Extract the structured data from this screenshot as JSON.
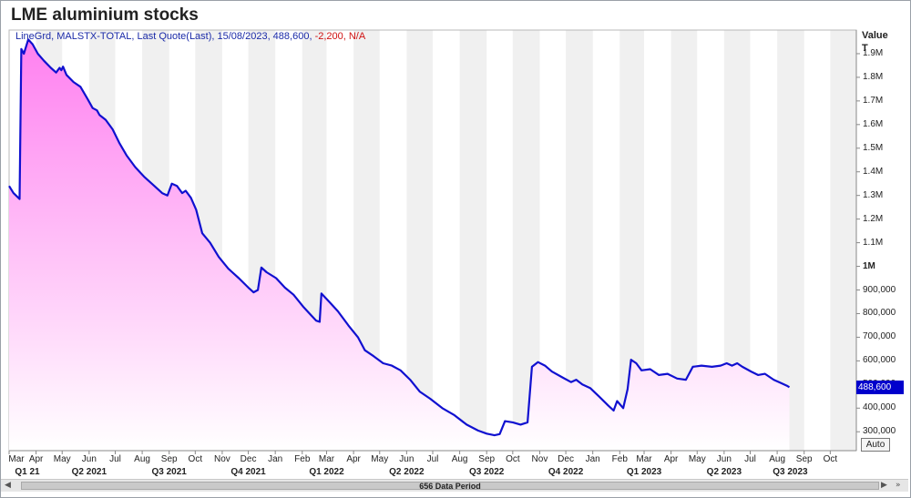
{
  "title": "LME aluminium stocks",
  "legend": {
    "prefix": "LineGrd, MALSTX-TOTAL, Last Quote(Last), 15/08/2023, 488,600,",
    "change": "-2,200, N/A"
  },
  "y_axis": {
    "title": "Value",
    "unit": "T",
    "ticks": [
      {
        "value": 300000,
        "label": "300,000",
        "bold": false
      },
      {
        "value": 400000,
        "label": "400,000",
        "bold": false
      },
      {
        "value": 500000,
        "label": "500,000",
        "bold": false
      },
      {
        "value": 600000,
        "label": "600,000",
        "bold": false
      },
      {
        "value": 700000,
        "label": "700,000",
        "bold": false
      },
      {
        "value": 800000,
        "label": "800,000",
        "bold": false
      },
      {
        "value": 900000,
        "label": "900,000",
        "bold": false
      },
      {
        "value": 1000000,
        "label": "1M",
        "bold": true
      },
      {
        "value": 1100000,
        "label": "1.1M",
        "bold": false
      },
      {
        "value": 1200000,
        "label": "1.2M",
        "bold": false
      },
      {
        "value": 1300000,
        "label": "1.3M",
        "bold": false
      },
      {
        "value": 1400000,
        "label": "1.4M",
        "bold": false
      },
      {
        "value": 1500000,
        "label": "1.5M",
        "bold": false
      },
      {
        "value": 1600000,
        "label": "1.6M",
        "bold": false
      },
      {
        "value": 1700000,
        "label": "1.7M",
        "bold": false
      },
      {
        "value": 1800000,
        "label": "1.8M",
        "bold": false
      },
      {
        "value": 1900000,
        "label": "1.9M",
        "bold": false
      }
    ],
    "last_value_label": "488,600",
    "auto_label": "Auto"
  },
  "x_axis": {
    "months": [
      "Mar",
      "Apr",
      "May",
      "Jun",
      "Jul",
      "Aug",
      "Sep",
      "Oct",
      "Nov",
      "Dec",
      "Jan",
      "Feb",
      "Mar",
      "Apr",
      "May",
      "Jun",
      "Jul",
      "Aug",
      "Sep",
      "Oct",
      "Nov",
      "Dec",
      "Jan",
      "Feb",
      "Mar",
      "Apr",
      "May",
      "Jun",
      "Jul",
      "Aug",
      "Sep",
      "Oct"
    ],
    "quarters": [
      "Q1 21",
      "Q2 2021",
      "Q3 2021",
      "Q4 2021",
      "Q1 2022",
      "Q2 2022",
      "Q3 2022",
      "Q4 2022",
      "Q1 2023",
      "Q2 2023",
      "Q3 2023"
    ]
  },
  "scrollbar_text": "656 Data Period",
  "colors": {
    "line": "#1010d0",
    "fill_top": "#ff80f0",
    "fill_bottom": "#ffffff",
    "band": "#f0f0f0",
    "badge": "#0000cc"
  },
  "chart_data": {
    "type": "area",
    "title": "LME aluminium stocks",
    "ylabel": "Value T",
    "series_label": "LineGrd, MALSTX-TOTAL, Last Quote(Last)",
    "ylim": [
      220000,
      2000000
    ],
    "x_range": [
      "2021-03-01",
      "2023-10-31"
    ],
    "points": [
      [
        "2021-03-01",
        1340000
      ],
      [
        "2021-03-06",
        1310000
      ],
      [
        "2021-03-13",
        1285000
      ],
      [
        "2021-03-15",
        1920000
      ],
      [
        "2021-03-18",
        1900000
      ],
      [
        "2021-03-23",
        1960000
      ],
      [
        "2021-03-28",
        1940000
      ],
      [
        "2021-04-03",
        1900000
      ],
      [
        "2021-04-10",
        1870000
      ],
      [
        "2021-04-18",
        1840000
      ],
      [
        "2021-04-24",
        1820000
      ],
      [
        "2021-04-28",
        1840000
      ],
      [
        "2021-04-30",
        1830000
      ],
      [
        "2021-05-02",
        1845000
      ],
      [
        "2021-05-06",
        1810000
      ],
      [
        "2021-05-14",
        1780000
      ],
      [
        "2021-05-22",
        1760000
      ],
      [
        "2021-05-30",
        1710000
      ],
      [
        "2021-06-05",
        1670000
      ],
      [
        "2021-06-10",
        1660000
      ],
      [
        "2021-06-13",
        1640000
      ],
      [
        "2021-06-20",
        1620000
      ],
      [
        "2021-06-28",
        1580000
      ],
      [
        "2021-07-06",
        1520000
      ],
      [
        "2021-07-14",
        1470000
      ],
      [
        "2021-07-24",
        1420000
      ],
      [
        "2021-08-03",
        1380000
      ],
      [
        "2021-08-15",
        1340000
      ],
      [
        "2021-08-24",
        1310000
      ],
      [
        "2021-08-30",
        1300000
      ],
      [
        "2021-09-04",
        1350000
      ],
      [
        "2021-09-10",
        1340000
      ],
      [
        "2021-09-16",
        1310000
      ],
      [
        "2021-09-20",
        1320000
      ],
      [
        "2021-09-26",
        1290000
      ],
      [
        "2021-10-02",
        1240000
      ],
      [
        "2021-10-09",
        1140000
      ],
      [
        "2021-10-18",
        1100000
      ],
      [
        "2021-10-28",
        1040000
      ],
      [
        "2021-11-08",
        990000
      ],
      [
        "2021-11-20",
        950000
      ],
      [
        "2021-12-01",
        910000
      ],
      [
        "2021-12-07",
        890000
      ],
      [
        "2021-12-12",
        900000
      ],
      [
        "2021-12-16",
        995000
      ],
      [
        "2021-12-22",
        975000
      ],
      [
        "2022-01-02",
        950000
      ],
      [
        "2022-01-12",
        910000
      ],
      [
        "2022-01-22",
        880000
      ],
      [
        "2022-02-02",
        830000
      ],
      [
        "2022-02-12",
        790000
      ],
      [
        "2022-02-17",
        770000
      ],
      [
        "2022-02-21",
        765000
      ],
      [
        "2022-02-23",
        885000
      ],
      [
        "2022-03-04",
        850000
      ],
      [
        "2022-03-14",
        810000
      ],
      [
        "2022-03-26",
        750000
      ],
      [
        "2022-04-06",
        700000
      ],
      [
        "2022-04-14",
        645000
      ],
      [
        "2022-04-24",
        620000
      ],
      [
        "2022-05-05",
        590000
      ],
      [
        "2022-05-15",
        580000
      ],
      [
        "2022-05-25",
        560000
      ],
      [
        "2022-06-05",
        520000
      ],
      [
        "2022-06-16",
        470000
      ],
      [
        "2022-06-28",
        440000
      ],
      [
        "2022-07-12",
        400000
      ],
      [
        "2022-07-26",
        370000
      ],
      [
        "2022-08-09",
        330000
      ],
      [
        "2022-08-22",
        305000
      ],
      [
        "2022-09-01",
        292000
      ],
      [
        "2022-09-10",
        285000
      ],
      [
        "2022-09-16",
        290000
      ],
      [
        "2022-09-22",
        345000
      ],
      [
        "2022-10-01",
        340000
      ],
      [
        "2022-10-10",
        330000
      ],
      [
        "2022-10-18",
        340000
      ],
      [
        "2022-10-23",
        575000
      ],
      [
        "2022-10-30",
        595000
      ],
      [
        "2022-11-07",
        580000
      ],
      [
        "2022-11-15",
        555000
      ],
      [
        "2022-11-27",
        530000
      ],
      [
        "2022-12-07",
        510000
      ],
      [
        "2022-12-13",
        520000
      ],
      [
        "2022-12-20",
        500000
      ],
      [
        "2022-12-29",
        485000
      ],
      [
        "2023-01-08",
        450000
      ],
      [
        "2023-01-19",
        410000
      ],
      [
        "2023-01-25",
        390000
      ],
      [
        "2023-01-29",
        430000
      ],
      [
        "2023-02-05",
        400000
      ],
      [
        "2023-02-10",
        480000
      ],
      [
        "2023-02-14",
        605000
      ],
      [
        "2023-02-20",
        590000
      ],
      [
        "2023-02-26",
        560000
      ],
      [
        "2023-03-08",
        565000
      ],
      [
        "2023-03-18",
        540000
      ],
      [
        "2023-03-28",
        545000
      ],
      [
        "2023-04-08",
        525000
      ],
      [
        "2023-04-18",
        520000
      ],
      [
        "2023-04-26",
        575000
      ],
      [
        "2023-05-06",
        580000
      ],
      [
        "2023-05-18",
        575000
      ],
      [
        "2023-05-28",
        580000
      ],
      [
        "2023-06-04",
        590000
      ],
      [
        "2023-06-10",
        580000
      ],
      [
        "2023-06-16",
        590000
      ],
      [
        "2023-06-22",
        575000
      ],
      [
        "2023-07-02",
        555000
      ],
      [
        "2023-07-10",
        540000
      ],
      [
        "2023-07-18",
        545000
      ],
      [
        "2023-07-28",
        520000
      ],
      [
        "2023-08-06",
        505000
      ],
      [
        "2023-08-12",
        495000
      ],
      [
        "2023-08-15",
        488600
      ]
    ]
  }
}
